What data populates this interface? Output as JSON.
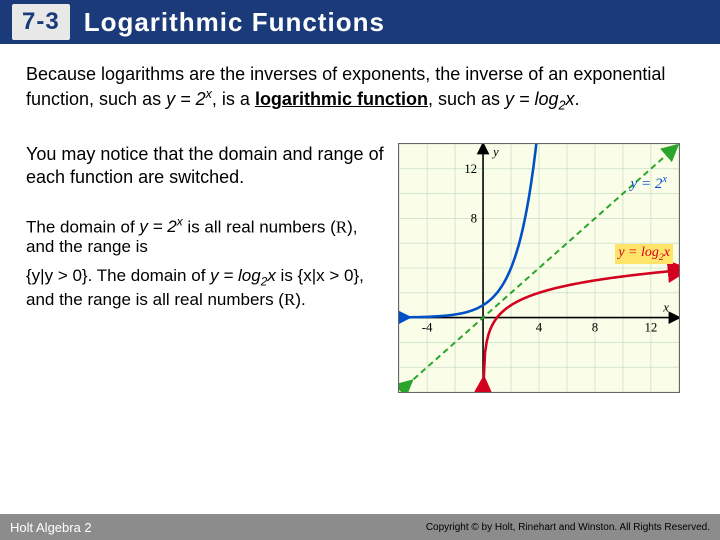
{
  "header": {
    "section": "7-3",
    "title": "Logarithmic Functions"
  },
  "para1_a": "Because logarithms are the inverses of exponents, the inverse of an exponential function, such as ",
  "para1_eq1": "y = 2",
  "para1_exp1": "x",
  "para1_b": ", is a ",
  "para1_bold": "logarithmic function",
  "para1_c": ", such as ",
  "para1_eq2": "y = log",
  "para1_sub2": "2",
  "para1_eq2x": "x",
  "para1_d": ".",
  "para2": "You may notice that the domain and range of each function are switched.",
  "para3_a": "The domain of ",
  "para3_eq1": "y = 2",
  "para3_exp1": "x",
  "para3_b": " is all real numbers (",
  "para3_r1": "R",
  "para3_c": "), and the range is",
  "para3_d": "{y|y > 0}. The domain of ",
  "para3_eq2": "y = log",
  "para3_sub2": "2",
  "para3_eq2x": "x",
  "para3_e": " is {x|x > 0}, and the range is all real numbers (",
  "para3_r2": "R",
  "para3_f": ").",
  "chart": {
    "bg": "#fafde8",
    "axis_color": "#000000",
    "grid_color": "#bcd6c0",
    "exp_color": "#0050c8",
    "log_color": "#d40020",
    "diag_color": "#2aa52a",
    "log_bg": "#ffe46a",
    "xmin": -6,
    "xmax": 14,
    "ymin": -6,
    "ymax": 14,
    "xticks": [
      -4,
      4,
      8,
      12
    ],
    "yticks": [
      8,
      12
    ],
    "y_label": "y",
    "x_label": "x",
    "exp_label_a": "y = 2",
    "exp_label_sup": "x",
    "log_label_a": "y = log",
    "log_label_sub": "2",
    "log_label_x": "x"
  },
  "footer": {
    "left": "Holt Algebra 2",
    "right": "Copyright © by Holt, Rinehart and Winston. All Rights Reserved."
  }
}
